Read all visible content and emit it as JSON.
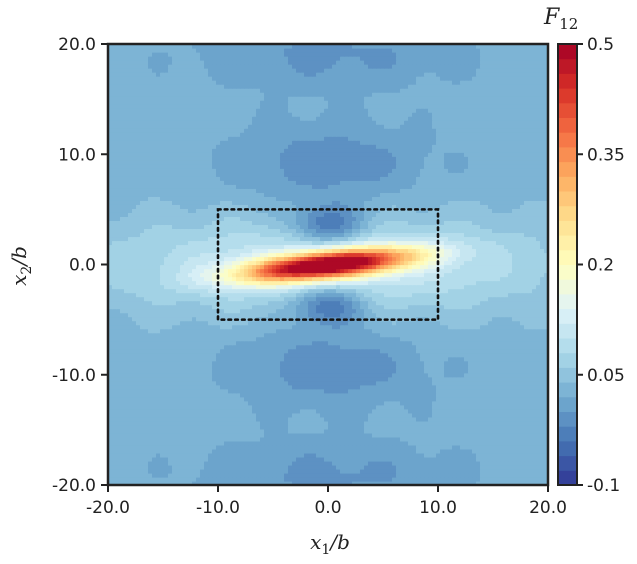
{
  "chart_data": {
    "type": "heatmap",
    "title": "",
    "xlabel": "x",
    "xlabel_sub": "1",
    "xlabel_den": "/b",
    "ylabel": "x",
    "ylabel_sub": "2",
    "ylabel_den": "/b",
    "xlim": [
      -20,
      20
    ],
    "ylim": [
      -20,
      20
    ],
    "x_ticks": [
      -20,
      -10,
      0,
      10,
      20
    ],
    "y_ticks": [
      -20,
      -10,
      0,
      10,
      20
    ],
    "x_tick_labels": [
      "-20.0",
      "-10.0",
      "0.0",
      "10.0",
      "20.0"
    ],
    "y_tick_labels": [
      "-20.0",
      "-10.0",
      "0.0",
      "10.0",
      "20.0"
    ],
    "colorbar": {
      "title": "F",
      "title_sub": "12",
      "range": [
        -0.1,
        0.5
      ],
      "ticks": [
        -0.1,
        0.05,
        0.2,
        0.35,
        0.5
      ],
      "tick_labels": [
        "-0.1",
        "0.05",
        "0.2",
        "0.35",
        "0.5"
      ],
      "colormap": "RdYlBu_r",
      "levels": 30
    },
    "annotations": [
      {
        "kind": "dotted-rectangle",
        "x_range": [
          -10,
          10
        ],
        "y_range": [
          -5,
          5
        ]
      }
    ],
    "field_description": {
      "peak": {
        "x": 0.0,
        "y": 0.0,
        "value": 0.5
      },
      "background_value": 0.03,
      "central_streak_halfwidths": [
        7.5,
        1.2
      ],
      "central_streak_tilt_deg": 6,
      "negative_lobes": [
        {
          "x": 0,
          "y": 3.5,
          "value": -0.05
        },
        {
          "x": 0,
          "y": -3.5,
          "value": -0.05
        }
      ]
    }
  }
}
